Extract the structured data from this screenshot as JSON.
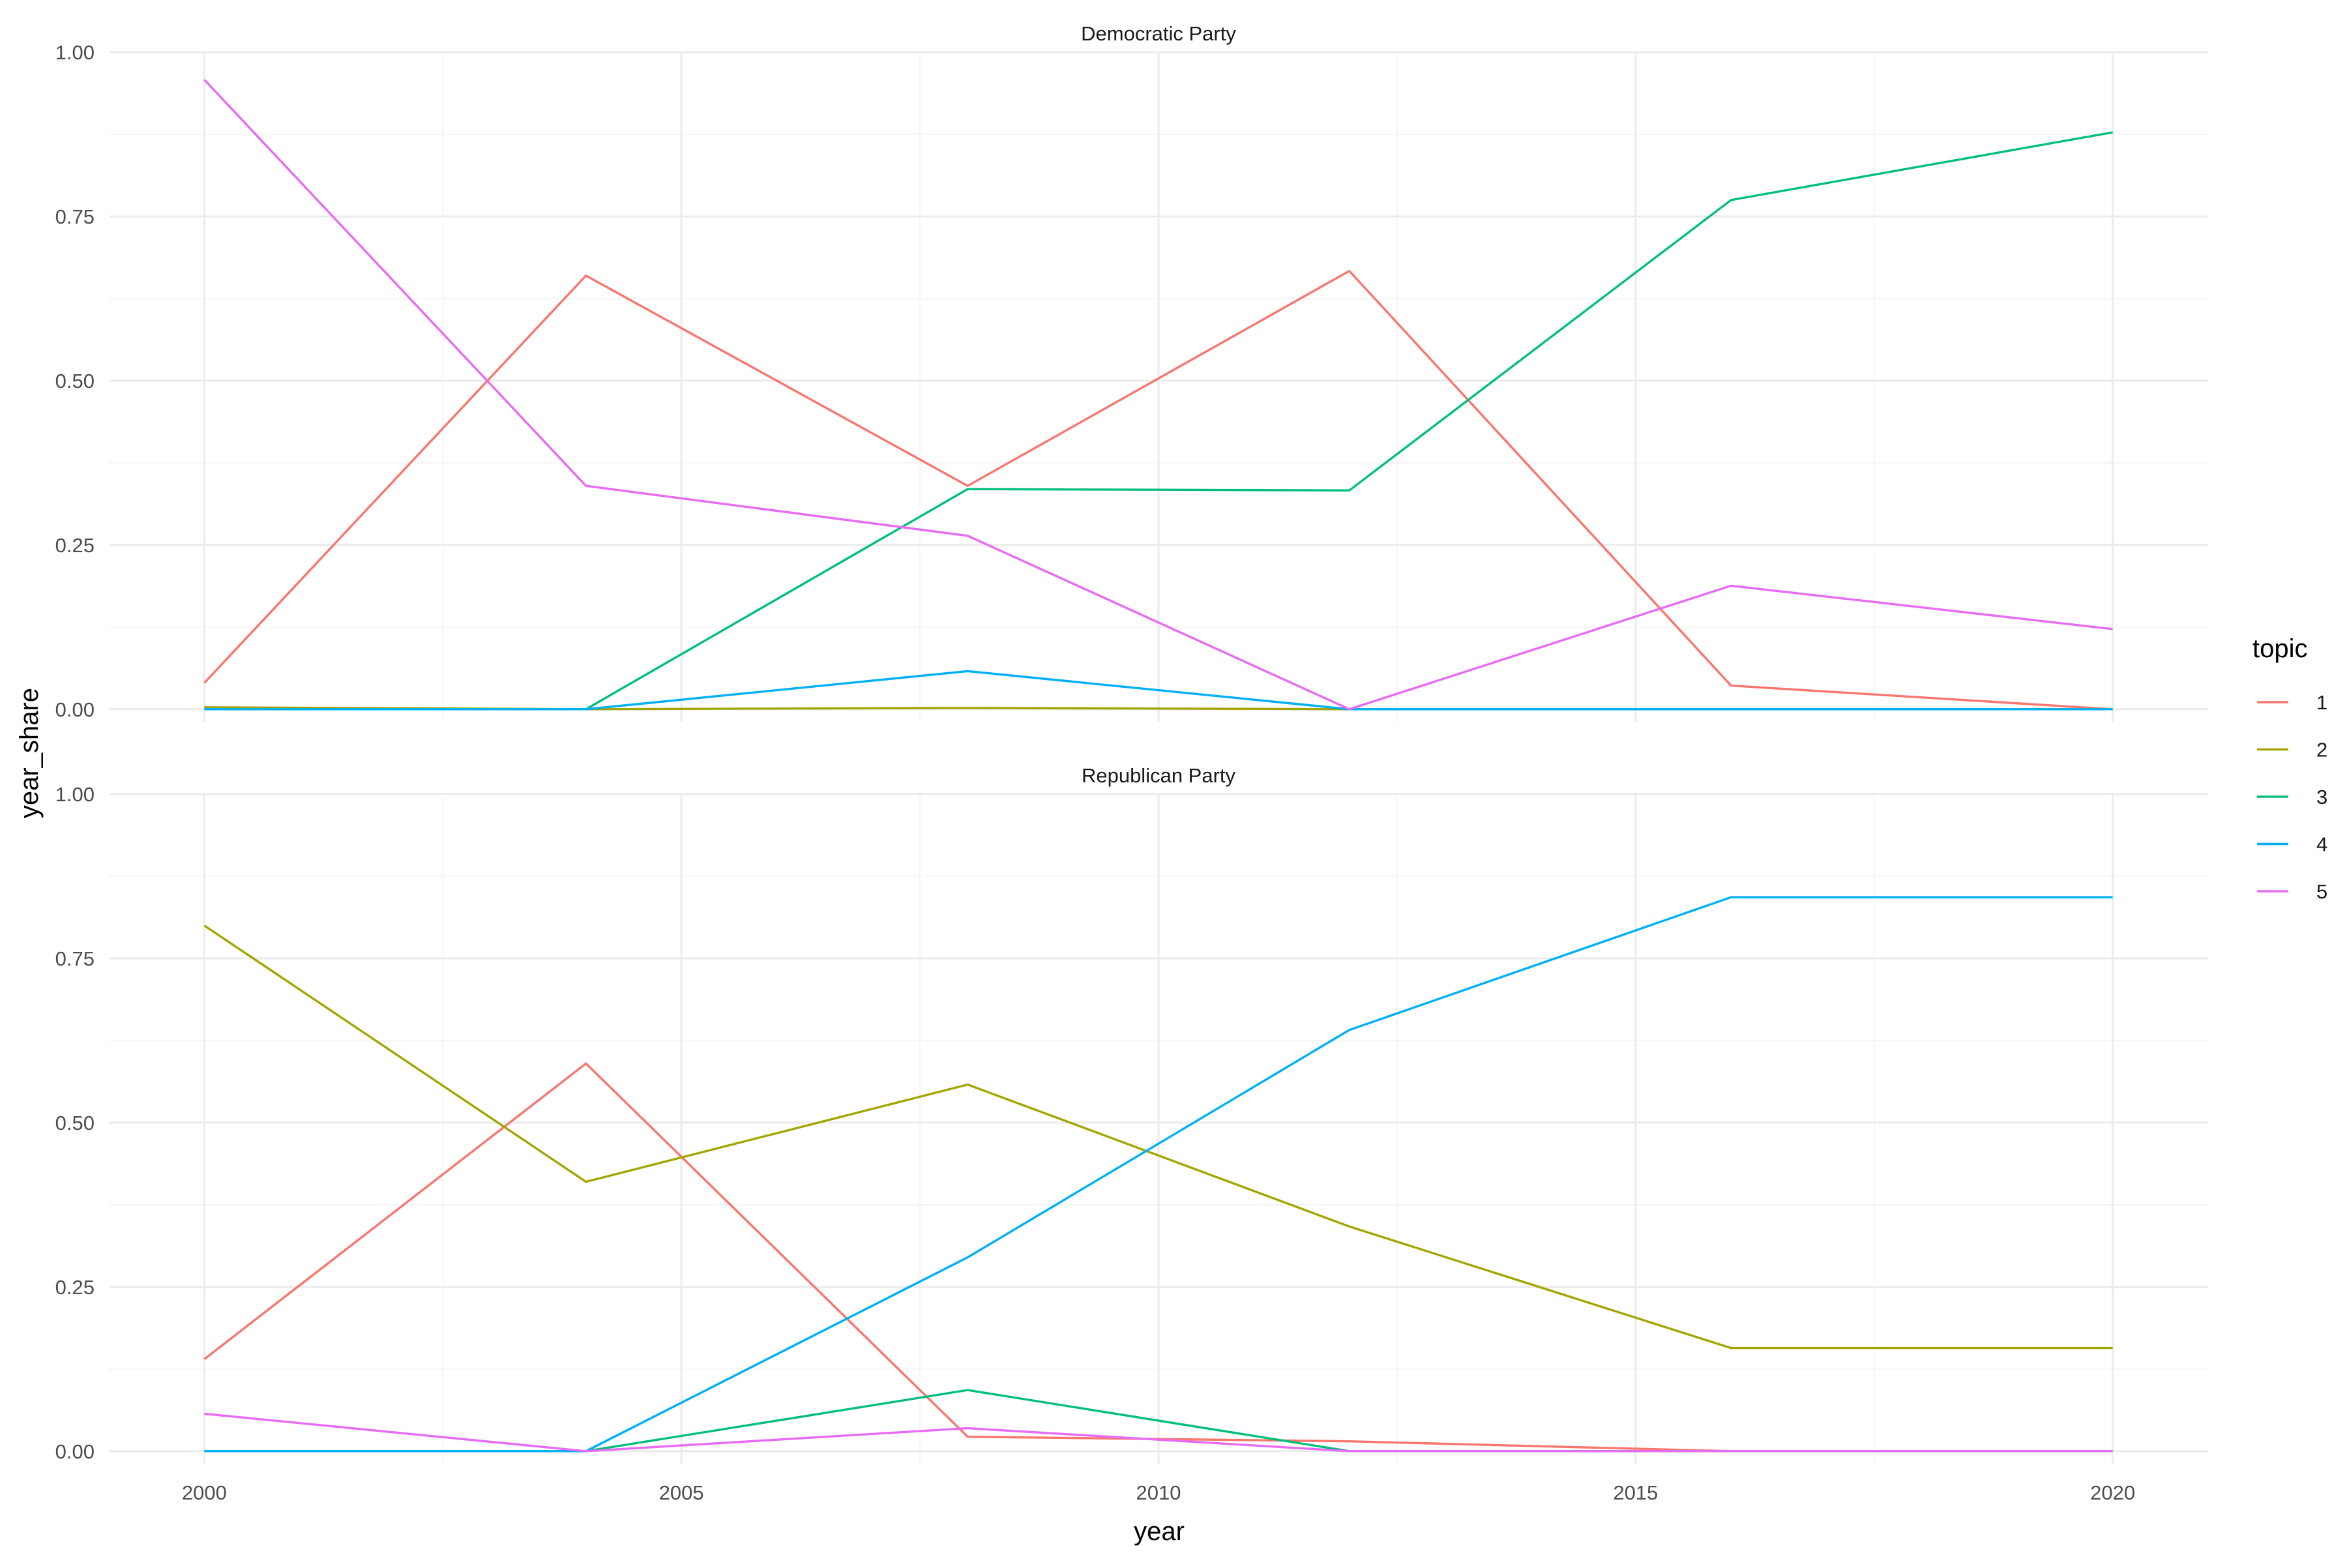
{
  "chart_data": {
    "type": "line",
    "xlabel": "year",
    "ylabel": "year_share",
    "xlim": [
      1999,
      2021
    ],
    "ylim": [
      -0.02,
      1.0
    ],
    "x_ticks": [
      2000,
      2005,
      2010,
      2015,
      2020
    ],
    "x_tick_labels": [
      "2000",
      "2005",
      "2010",
      "2015",
      "2020"
    ],
    "y_ticks": [
      0,
      0.25,
      0.5,
      0.75,
      1.0
    ],
    "y_tick_labels": [
      "0.00",
      "0.25",
      "0.50",
      "0.75",
      "1.00"
    ],
    "grid": true,
    "legend": {
      "title": "topic",
      "placement": "right",
      "entries": [
        {
          "label": "1",
          "color": "#F8766D"
        },
        {
          "label": "2",
          "color": "#A3A500"
        },
        {
          "label": "3",
          "color": "#00BF7D"
        },
        {
          "label": "4",
          "color": "#00B0F6"
        },
        {
          "label": "5",
          "color": "#E76BF3"
        }
      ]
    },
    "facets": [
      {
        "title": "Democratic Party",
        "x": [
          2000,
          2004,
          2008,
          2012,
          2016,
          2020
        ],
        "series": [
          {
            "name": "1",
            "values": [
              0.04,
              0.66,
              0.34,
              0.667,
              0.036,
              0.0
            ]
          },
          {
            "name": "2",
            "values": [
              0.003,
              0.0,
              0.002,
              0.0,
              0.0,
              0.0
            ]
          },
          {
            "name": "3",
            "values": [
              0.0,
              0.0,
              0.335,
              0.333,
              0.775,
              0.878
            ]
          },
          {
            "name": "4",
            "values": [
              0.0,
              0.0,
              0.058,
              0.0,
              0.0,
              0.0
            ]
          },
          {
            "name": "5",
            "values": [
              0.958,
              0.34,
              0.264,
              0.0,
              0.188,
              0.122
            ]
          }
        ]
      },
      {
        "title": "Republican Party",
        "x": [
          2000,
          2004,
          2008,
          2012,
          2016,
          2020
        ],
        "series": [
          {
            "name": "1",
            "values": [
              0.14,
              0.59,
              0.022,
              0.015,
              0.0,
              0.0
            ]
          },
          {
            "name": "2",
            "values": [
              0.8,
              0.41,
              0.558,
              0.342,
              0.157,
              0.157
            ]
          },
          {
            "name": "3",
            "values": [
              0.0,
              0.0,
              0.093,
              0.0,
              0.0,
              0.0
            ]
          },
          {
            "name": "4",
            "values": [
              0.0,
              0.0,
              0.295,
              0.641,
              0.843,
              0.843
            ]
          },
          {
            "name": "5",
            "values": [
              0.057,
              0.0,
              0.035,
              0.0,
              0.0,
              0.0
            ]
          }
        ]
      }
    ]
  }
}
